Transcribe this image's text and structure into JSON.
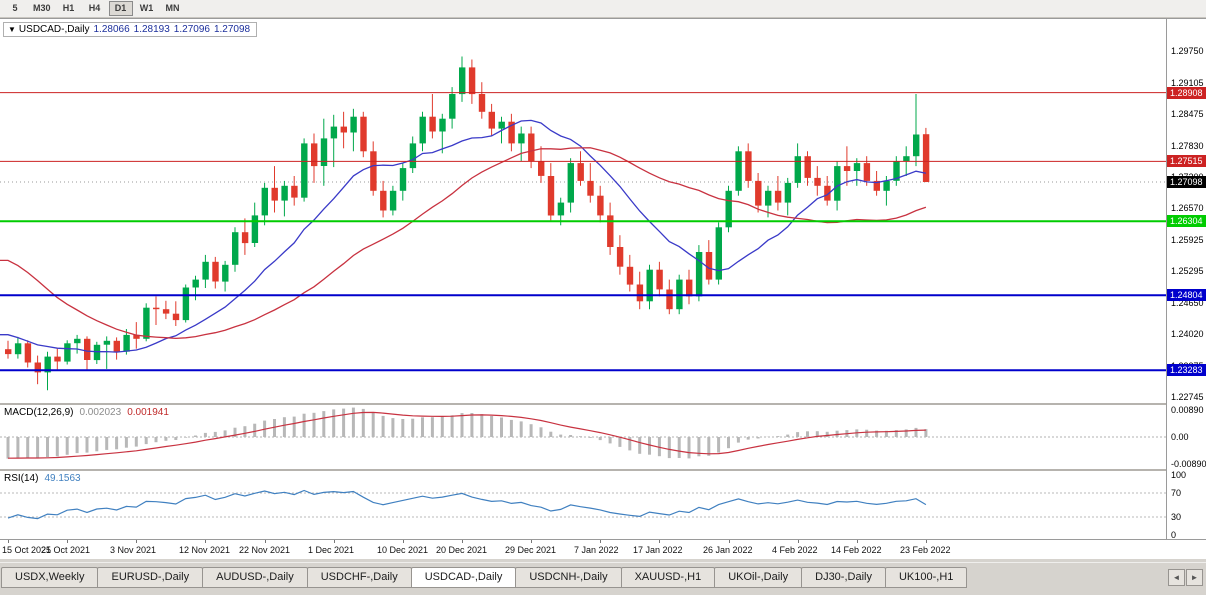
{
  "toolbar": {
    "periods": [
      "5",
      "M30",
      "H1",
      "H4",
      "D1",
      "W1",
      "MN"
    ],
    "active": "D1"
  },
  "tabs": {
    "items": [
      "USDX,Weekly",
      "EURUSD-,Daily",
      "AUDUSD-,Daily",
      "USDCHF-,Daily",
      "USDCAD-,Daily",
      "USDCNH-,Daily",
      "XAUUSD-,H1",
      "UKOil-,Daily",
      "DJ30-,Daily",
      "UK100-,H1"
    ],
    "active": "USDCAD-,Daily",
    "scroll_left_icon": "◄",
    "scroll_right_icon": "►"
  },
  "chart_data": {
    "type": "candlestick",
    "symbol_label": "USDCAD-,Daily",
    "collapse_icon": "▼",
    "current_bar": {
      "open": "1.28066",
      "high": "1.28193",
      "low": "1.27096",
      "close": "1.27098"
    },
    "price_range": [
      1.2262,
      1.304
    ],
    "price_ticks": [
      "1.29750",
      "1.29105",
      "1.28475",
      "1.27830",
      "1.27200",
      "1.26570",
      "1.25925",
      "1.25295",
      "1.24650",
      "1.24020",
      "1.23375",
      "1.22745"
    ],
    "levels": [
      {
        "price": 1.28908,
        "label": "1.28908",
        "color": "#cc2222",
        "width": 1
      },
      {
        "price": 1.27515,
        "label": "1.27515",
        "color": "#cc2222",
        "width": 1
      },
      {
        "price": 1.26304,
        "label": "1.26304",
        "color": "#00cc00",
        "width": 2
      },
      {
        "price": 1.24804,
        "label": "1.24804",
        "color": "#0000cc",
        "width": 2
      },
      {
        "price": 1.23283,
        "label": "1.23283",
        "color": "#0000cc",
        "width": 2
      }
    ],
    "bid_marker": {
      "label": "1.27098",
      "price": 1.27098,
      "bg": "#000000"
    },
    "colors": {
      "bull": "#00a84b",
      "bear": "#e03a2c",
      "background": "#ffffff"
    },
    "ma": [
      {
        "name": "ma-fast",
        "period": 13,
        "color": "#3a3ac8"
      },
      {
        "name": "ma-slow",
        "period": 30,
        "color": "#c83240"
      }
    ],
    "seed_closes": [
      1.265,
      1.27,
      1.276,
      1.282,
      1.288,
      1.285,
      1.279,
      1.274,
      1.27,
      1.268,
      1.265,
      1.262,
      1.259,
      1.256,
      1.253,
      1.25,
      1.248,
      1.247,
      1.246,
      1.244,
      1.242,
      1.24,
      1.239,
      1.2395,
      1.24,
      1.2405,
      1.2395,
      1.2385,
      1.238,
      1.2375
    ],
    "candles": [
      [
        1.2371,
        1.2388,
        1.2352,
        1.2361
      ],
      [
        1.2361,
        1.2396,
        1.2352,
        1.2383
      ],
      [
        1.2383,
        1.2389,
        1.2334,
        1.2344
      ],
      [
        1.2344,
        1.2358,
        1.23,
        1.2324
      ],
      [
        1.2324,
        1.2366,
        1.2288,
        1.2356
      ],
      [
        1.2356,
        1.2372,
        1.233,
        1.2346
      ],
      [
        1.2346,
        1.2389,
        1.234,
        1.2383
      ],
      [
        1.2383,
        1.24,
        1.2362,
        1.2392
      ],
      [
        1.2392,
        1.2397,
        1.233,
        1.2349
      ],
      [
        1.2349,
        1.2386,
        1.2341,
        1.238
      ],
      [
        1.238,
        1.2397,
        1.2331,
        1.2388
      ],
      [
        1.2388,
        1.2395,
        1.235,
        1.2366
      ],
      [
        1.2366,
        1.2412,
        1.236,
        1.24
      ],
      [
        1.24,
        1.2426,
        1.2372,
        1.2392
      ],
      [
        1.2392,
        1.2464,
        1.2387,
        1.2455
      ],
      [
        1.2455,
        1.2478,
        1.242,
        1.2452
      ],
      [
        1.2452,
        1.2469,
        1.2432,
        1.2443
      ],
      [
        1.2443,
        1.2468,
        1.2418,
        1.243
      ],
      [
        1.243,
        1.2502,
        1.2425,
        1.2496
      ],
      [
        1.2496,
        1.252,
        1.247,
        1.2512
      ],
      [
        1.2512,
        1.2562,
        1.2495,
        1.2548
      ],
      [
        1.2548,
        1.2558,
        1.2494,
        1.2508
      ],
      [
        1.2508,
        1.255,
        1.2488,
        1.2542
      ],
      [
        1.2542,
        1.2618,
        1.2528,
        1.2608
      ],
      [
        1.2608,
        1.2636,
        1.2562,
        1.2586
      ],
      [
        1.2586,
        1.2668,
        1.2578,
        1.2642
      ],
      [
        1.2642,
        1.2708,
        1.2622,
        1.2698
      ],
      [
        1.2698,
        1.2742,
        1.2648,
        1.2672
      ],
      [
        1.2672,
        1.2712,
        1.264,
        1.2702
      ],
      [
        1.2702,
        1.2722,
        1.2662,
        1.2678
      ],
      [
        1.2678,
        1.2798,
        1.267,
        1.2788
      ],
      [
        1.2788,
        1.2808,
        1.2708,
        1.2742
      ],
      [
        1.2742,
        1.2838,
        1.2702,
        1.2798
      ],
      [
        1.2798,
        1.2846,
        1.274,
        1.2822
      ],
      [
        1.2822,
        1.2852,
        1.2778,
        1.281
      ],
      [
        1.281,
        1.2858,
        1.2772,
        1.2842
      ],
      [
        1.2842,
        1.2852,
        1.276,
        1.2772
      ],
      [
        1.2772,
        1.2792,
        1.2682,
        1.2692
      ],
      [
        1.2692,
        1.2712,
        1.2638,
        1.2652
      ],
      [
        1.2652,
        1.2702,
        1.2642,
        1.2692
      ],
      [
        1.2692,
        1.2748,
        1.2672,
        1.2738
      ],
      [
        1.2738,
        1.2802,
        1.2728,
        1.2788
      ],
      [
        1.2788,
        1.2852,
        1.2772,
        1.2842
      ],
      [
        1.2842,
        1.2888,
        1.2798,
        1.2812
      ],
      [
        1.2812,
        1.2848,
        1.2768,
        1.2838
      ],
      [
        1.2838,
        1.2902,
        1.2818,
        1.2888
      ],
      [
        1.2888,
        1.2964,
        1.2872,
        1.2942
      ],
      [
        1.2942,
        1.2958,
        1.2868,
        1.2888
      ],
      [
        1.2888,
        1.2912,
        1.2838,
        1.2852
      ],
      [
        1.2852,
        1.2868,
        1.2802,
        1.2818
      ],
      [
        1.2818,
        1.2842,
        1.2788,
        1.2832
      ],
      [
        1.2832,
        1.2848,
        1.2772,
        1.2788
      ],
      [
        1.2788,
        1.2822,
        1.2752,
        1.2808
      ],
      [
        1.2808,
        1.2822,
        1.2738,
        1.2752
      ],
      [
        1.2752,
        1.2782,
        1.2708,
        1.2722
      ],
      [
        1.2722,
        1.2748,
        1.2632,
        1.2642
      ],
      [
        1.2642,
        1.2678,
        1.2622,
        1.2668
      ],
      [
        1.2668,
        1.2758,
        1.2648,
        1.2748
      ],
      [
        1.2748,
        1.2772,
        1.2702,
        1.2712
      ],
      [
        1.2712,
        1.2748,
        1.2668,
        1.2682
      ],
      [
        1.2682,
        1.2702,
        1.2628,
        1.2642
      ],
      [
        1.2642,
        1.2668,
        1.2562,
        1.2578
      ],
      [
        1.2578,
        1.2602,
        1.2522,
        1.2538
      ],
      [
        1.2538,
        1.2562,
        1.2488,
        1.2502
      ],
      [
        1.2502,
        1.2528,
        1.2452,
        1.2468
      ],
      [
        1.2468,
        1.2542,
        1.2452,
        1.2532
      ],
      [
        1.2532,
        1.2548,
        1.2478,
        1.2492
      ],
      [
        1.2492,
        1.2512,
        1.2442,
        1.2452
      ],
      [
        1.2452,
        1.2522,
        1.2442,
        1.2512
      ],
      [
        1.2512,
        1.2532,
        1.2462,
        1.2478
      ],
      [
        1.2478,
        1.2582,
        1.2468,
        1.2568
      ],
      [
        1.2568,
        1.2592,
        1.2502,
        1.2512
      ],
      [
        1.2512,
        1.2628,
        1.2502,
        1.2618
      ],
      [
        1.2618,
        1.2702,
        1.2608,
        1.2692
      ],
      [
        1.2692,
        1.2782,
        1.2682,
        1.2772
      ],
      [
        1.2772,
        1.2788,
        1.2698,
        1.2712
      ],
      [
        1.2712,
        1.2728,
        1.2648,
        1.2662
      ],
      [
        1.2662,
        1.2702,
        1.2638,
        1.2692
      ],
      [
        1.2692,
        1.2722,
        1.2652,
        1.2668
      ],
      [
        1.2668,
        1.2718,
        1.2642,
        1.2708
      ],
      [
        1.2708,
        1.2788,
        1.2698,
        1.2762
      ],
      [
        1.2762,
        1.2772,
        1.2702,
        1.2718
      ],
      [
        1.2718,
        1.2742,
        1.2682,
        1.2702
      ],
      [
        1.2702,
        1.2722,
        1.2662,
        1.2672
      ],
      [
        1.2672,
        1.2752,
        1.2652,
        1.2742
      ],
      [
        1.2742,
        1.2782,
        1.2702,
        1.2732
      ],
      [
        1.2732,
        1.2758,
        1.2702,
        1.2748
      ],
      [
        1.2748,
        1.2762,
        1.2702,
        1.2712
      ],
      [
        1.2712,
        1.2732,
        1.2682,
        1.2692
      ],
      [
        1.2692,
        1.2722,
        1.2662,
        1.2712
      ],
      [
        1.2712,
        1.2762,
        1.2702,
        1.2752
      ],
      [
        1.2752,
        1.2782,
        1.2722,
        1.2762
      ],
      [
        1.2762,
        1.2888,
        1.2742,
        1.2806
      ],
      [
        1.28066,
        1.28193,
        1.27096,
        1.27098
      ]
    ],
    "date_labels": [
      {
        "text": "15 Oct 2021",
        "i": 0
      },
      {
        "text": "25 Oct 2021",
        "i": 6
      },
      {
        "text": "3 Nov 2021",
        "i": 13
      },
      {
        "text": "12 Nov 2021",
        "i": 20
      },
      {
        "text": "22 Nov 2021",
        "i": 26
      },
      {
        "text": "1 Dec 2021",
        "i": 33
      },
      {
        "text": "10 Dec 2021",
        "i": 40
      },
      {
        "text": "20 Dec 2021",
        "i": 46
      },
      {
        "text": "29 Dec 2021",
        "i": 53
      },
      {
        "text": "7 Jan 2022",
        "i": 60
      },
      {
        "text": "17 Jan 2022",
        "i": 66
      },
      {
        "text": "26 Jan 2022",
        "i": 73
      },
      {
        "text": "4 Feb 2022",
        "i": 80
      },
      {
        "text": "14 Feb 2022",
        "i": 86
      },
      {
        "text": "23 Feb 2022",
        "i": 93
      }
    ],
    "macd": {
      "label": "MACD(12,26,9)",
      "value_main": "0.002023",
      "value_signal": "0.001941",
      "params": [
        12,
        26,
        9
      ],
      "range": 0.0105,
      "hist_color": "#b8b8b8",
      "signal_color": "#c83240",
      "axis": [
        {
          "text": "0.00890",
          "value": 0.0089
        },
        {
          "text": "0.00",
          "value": 0
        },
        {
          "text": "-0.00890",
          "value": -0.0089
        }
      ]
    },
    "rsi": {
      "label": "RSI(14)",
      "value": "49.1563",
      "period": 14,
      "color": "#4080c0",
      "levels": [
        70,
        30
      ],
      "axis": [
        {
          "text": "100",
          "value": 100
        },
        {
          "text": "70",
          "value": 70
        },
        {
          "text": "30",
          "value": 30
        },
        {
          "text": "0",
          "value": 0
        }
      ]
    }
  }
}
